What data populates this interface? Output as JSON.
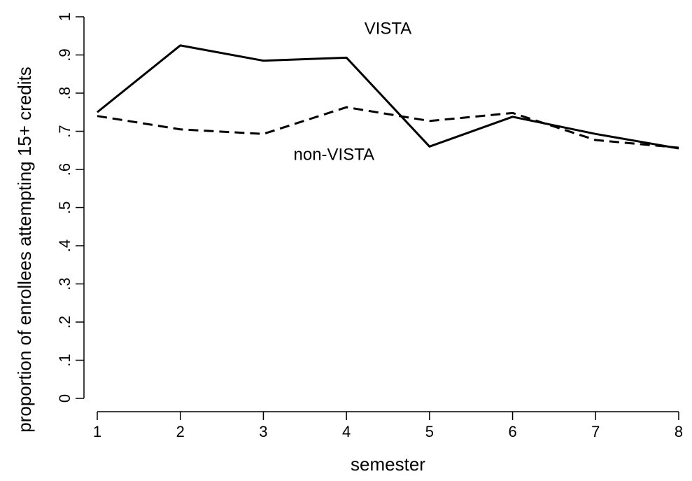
{
  "chart_data": {
    "type": "line",
    "title": "",
    "xlabel": "semester",
    "ylabel": "proportion of enrollees attempting 15+ credits",
    "x": [
      1,
      2,
      3,
      4,
      5,
      6,
      7,
      8
    ],
    "xlim": [
      1,
      8
    ],
    "ylim": [
      0,
      1
    ],
    "x_ticks": [
      1,
      2,
      3,
      4,
      5,
      6,
      7,
      8
    ],
    "x_tick_labels": [
      "1",
      "2",
      "3",
      "4",
      "5",
      "6",
      "7",
      "8"
    ],
    "y_ticks": [
      0,
      0.1,
      0.2,
      0.3,
      0.4,
      0.5,
      0.6,
      0.7,
      0.8,
      0.9,
      1
    ],
    "y_tick_labels": [
      "0",
      ".1",
      ".2",
      ".3",
      ".4",
      ".5",
      ".6",
      ".7",
      ".8",
      ".9",
      "1"
    ],
    "grid": false,
    "series": [
      {
        "name": "VISTA",
        "line_style": "solid",
        "color": "#000000",
        "values": [
          0.75,
          0.925,
          0.885,
          0.893,
          0.66,
          0.738,
          0.693,
          0.655
        ]
      },
      {
        "name": "non-VISTA",
        "line_style": "dashed",
        "color": "#000000",
        "values": [
          0.74,
          0.705,
          0.693,
          0.763,
          0.727,
          0.748,
          0.677,
          0.657
        ]
      }
    ],
    "annotations": [
      {
        "text": "VISTA",
        "x": 4.5,
        "y": 0.955
      },
      {
        "text": "non-VISTA",
        "x": 3.85,
        "y": 0.625
      }
    ]
  }
}
